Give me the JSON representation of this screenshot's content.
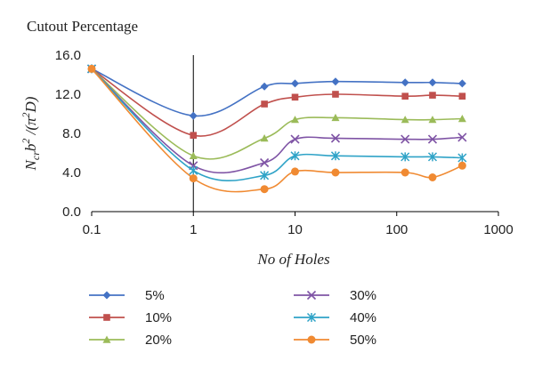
{
  "chart_data": {
    "type": "line",
    "title": "Cutout Percentage",
    "xlabel": "No of Holes",
    "ylabel": "N_cr b^2 /(π^2 D)",
    "x_scale": "log",
    "xlim": [
      0.1,
      1000
    ],
    "ylim": [
      0,
      16
    ],
    "x_ticks": [
      0.1,
      1,
      10,
      100,
      1000
    ],
    "x_tick_labels": [
      "0.1",
      "1",
      "10",
      "100",
      "1000"
    ],
    "y_ticks": [
      0,
      4,
      8,
      12,
      16
    ],
    "y_tick_labels": [
      "0.0",
      "4.0",
      "8.0",
      "12.0",
      "16.0"
    ],
    "legend_position": "bottom",
    "x": [
      0.1,
      1,
      5,
      10,
      25,
      121,
      225,
      441
    ],
    "series": [
      {
        "name": "5%",
        "color": "#4472c4",
        "marker": "diamond",
        "values": [
          14.6,
          9.8,
          12.8,
          13.1,
          13.3,
          13.2,
          13.2,
          13.1
        ]
      },
      {
        "name": "10%",
        "color": "#c0504d",
        "marker": "square",
        "values": [
          14.6,
          7.8,
          11.0,
          11.7,
          12.0,
          11.8,
          11.9,
          11.8
        ]
      },
      {
        "name": "20%",
        "color": "#9bbb59",
        "marker": "triangle",
        "values": [
          14.6,
          5.7,
          7.5,
          9.4,
          9.6,
          9.4,
          9.4,
          9.5
        ]
      },
      {
        "name": "30%",
        "color": "#7f54a5",
        "marker": "x",
        "values": [
          14.6,
          4.7,
          5.0,
          7.4,
          7.5,
          7.4,
          7.4,
          7.6
        ]
      },
      {
        "name": "40%",
        "color": "#2fa3c7",
        "marker": "star",
        "values": [
          14.6,
          4.2,
          3.7,
          5.7,
          5.7,
          5.6,
          5.6,
          5.5
        ]
      },
      {
        "name": "50%",
        "color": "#f08a32",
        "marker": "circle",
        "values": [
          14.6,
          3.4,
          2.3,
          4.1,
          4.0,
          4.0,
          3.5,
          4.7
        ]
      }
    ]
  }
}
